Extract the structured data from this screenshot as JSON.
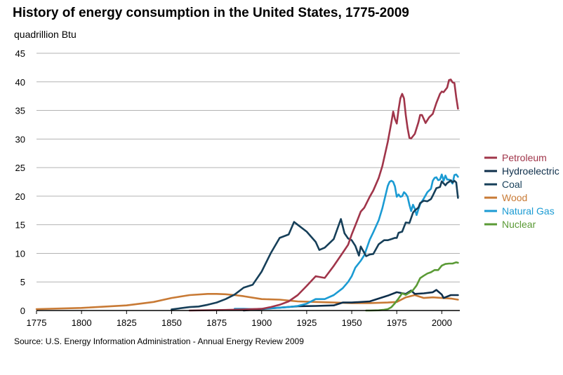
{
  "chart_data": {
    "type": "line",
    "title": "History of energy consumption in the United States, 1775-2009",
    "subtitle": "quadrillion Btu",
    "source": "Source: U.S. Energy Information Administration - Annual Energy Review 2009",
    "xlim": [
      1775,
      2010
    ],
    "ylim": [
      0,
      45
    ],
    "x_ticks": [
      1775,
      1800,
      1825,
      1850,
      1875,
      1900,
      1925,
      1950,
      1975,
      2000
    ],
    "y_ticks": [
      0,
      5,
      10,
      15,
      20,
      25,
      30,
      35,
      40,
      45
    ],
    "grid": true,
    "legend_position": "right",
    "series": [
      {
        "name": "Petroleum",
        "color": "#a0354a",
        "x": [
          1860,
          1880,
          1890,
          1900,
          1905,
          1910,
          1915,
          1920,
          1925,
          1930,
          1935,
          1940,
          1945,
          1948,
          1950,
          1952,
          1955,
          1957,
          1960,
          1962,
          1965,
          1967,
          1970,
          1972,
          1973,
          1974,
          1975,
          1976,
          1977,
          1978,
          1979,
          1980,
          1981,
          1982,
          1983,
          1985,
          1987,
          1988,
          1989,
          1990,
          1991,
          1993,
          1995,
          1997,
          1999,
          2000,
          2001,
          2003,
          2004,
          2005,
          2006,
          2007,
          2008,
          2009
        ],
        "y": [
          0,
          0.1,
          0.2,
          0.3,
          0.6,
          1.0,
          1.6,
          2.7,
          4.3,
          6.0,
          5.7,
          7.8,
          10.1,
          11.5,
          13.3,
          14.9,
          17.3,
          18.0,
          19.9,
          21.0,
          23.2,
          25.3,
          29.5,
          32.9,
          34.8,
          33.5,
          32.7,
          35.2,
          37.1,
          37.9,
          37.1,
          34.2,
          31.9,
          30.2,
          30.1,
          30.9,
          32.9,
          34.2,
          34.2,
          33.5,
          32.8,
          33.8,
          34.4,
          36.3,
          37.9,
          38.3,
          38.2,
          39.0,
          40.3,
          40.4,
          39.9,
          39.8,
          37.3,
          35.3
        ]
      },
      {
        "name": "Hydroelectric",
        "color": "#0d2e4a",
        "x": [
          1890,
          1900,
          1910,
          1920,
          1930,
          1940,
          1945,
          1950,
          1960,
          1970,
          1975,
          1980,
          1983,
          1985,
          1990,
          1995,
          1997,
          2000,
          2001,
          2005,
          2009
        ],
        "y": [
          0,
          0.25,
          0.5,
          0.75,
          0.8,
          0.9,
          1.4,
          1.4,
          1.6,
          2.6,
          3.2,
          2.9,
          3.5,
          2.9,
          3.0,
          3.2,
          3.6,
          2.8,
          2.2,
          2.7,
          2.7
        ]
      },
      {
        "name": "Coal",
        "color": "#163f59",
        "x": [
          1850,
          1855,
          1860,
          1865,
          1870,
          1875,
          1880,
          1885,
          1890,
          1895,
          1900,
          1905,
          1910,
          1915,
          1918,
          1920,
          1925,
          1930,
          1932,
          1935,
          1940,
          1944,
          1946,
          1948,
          1950,
          1952,
          1954,
          1955,
          1958,
          1960,
          1962,
          1965,
          1968,
          1970,
          1972,
          1974,
          1975,
          1976,
          1978,
          1980,
          1982,
          1984,
          1985,
          1987,
          1988,
          1990,
          1992,
          1994,
          1995,
          1997,
          1999,
          2000,
          2002,
          2003,
          2004,
          2005,
          2006,
          2007,
          2008,
          2009
        ],
        "y": [
          0.2,
          0.4,
          0.6,
          0.7,
          1.0,
          1.4,
          2.0,
          2.8,
          4.0,
          4.5,
          6.8,
          10.0,
          12.7,
          13.3,
          15.5,
          15.0,
          13.8,
          12.0,
          10.6,
          11.0,
          12.5,
          16.0,
          13.5,
          12.6,
          12.3,
          11.3,
          9.6,
          11.2,
          9.5,
          9.8,
          9.9,
          11.6,
          12.3,
          12.3,
          12.5,
          12.7,
          12.7,
          13.6,
          13.8,
          15.4,
          15.3,
          17.1,
          17.5,
          18.0,
          18.8,
          19.2,
          19.1,
          19.5,
          20.1,
          21.4,
          21.6,
          22.6,
          21.9,
          22.3,
          22.5,
          22.8,
          22.4,
          22.7,
          22.4,
          19.7
        ]
      },
      {
        "name": "Wood",
        "color": "#c87a35",
        "x": [
          1775,
          1800,
          1825,
          1835,
          1840,
          1850,
          1860,
          1870,
          1875,
          1880,
          1885,
          1890,
          1900,
          1910,
          1920,
          1930,
          1940,
          1950,
          1960,
          1970,
          1975,
          1980,
          1985,
          1990,
          1995,
          2000,
          2005,
          2009
        ],
        "y": [
          0.25,
          0.45,
          0.9,
          1.3,
          1.5,
          2.2,
          2.7,
          2.9,
          2.9,
          2.85,
          2.7,
          2.5,
          2.0,
          1.9,
          1.6,
          1.5,
          1.4,
          1.3,
          1.3,
          1.4,
          1.5,
          2.3,
          2.7,
          2.2,
          2.3,
          2.2,
          2.1,
          1.9
        ]
      },
      {
        "name": "Natural Gas",
        "color": "#1b9bd3",
        "x": [
          1885,
          1890,
          1895,
          1900,
          1905,
          1910,
          1915,
          1920,
          1925,
          1930,
          1935,
          1940,
          1945,
          1948,
          1950,
          1952,
          1955,
          1957,
          1960,
          1962,
          1965,
          1967,
          1970,
          1971,
          1972,
          1973,
          1974,
          1975,
          1976,
          1977,
          1978,
          1979,
          1980,
          1981,
          1982,
          1983,
          1984,
          1985,
          1986,
          1987,
          1988,
          1990,
          1992,
          1994,
          1995,
          1996,
          1997,
          1998,
          1999,
          2000,
          2001,
          2002,
          2003,
          2004,
          2005,
          2006,
          2007,
          2008,
          2009
        ],
        "y": [
          0.3,
          0.3,
          0.25,
          0.3,
          0.4,
          0.5,
          0.6,
          0.8,
          1.2,
          2.0,
          2.0,
          2.7,
          3.9,
          5.0,
          6.0,
          7.5,
          8.7,
          9.7,
          12.4,
          13.7,
          15.8,
          17.9,
          21.8,
          22.5,
          22.7,
          22.5,
          21.7,
          19.9,
          20.3,
          19.9,
          20.0,
          20.7,
          20.4,
          19.9,
          18.5,
          17.4,
          18.5,
          17.8,
          16.7,
          17.7,
          18.6,
          19.6,
          20.7,
          21.3,
          22.7,
          23.2,
          23.3,
          22.8,
          22.9,
          23.8,
          22.7,
          23.6,
          22.9,
          22.9,
          22.6,
          22.2,
          23.7,
          23.8,
          23.4
        ]
      },
      {
        "name": "Nuclear",
        "color": "#5a9a35",
        "x": [
          1958,
          1960,
          1965,
          1968,
          1970,
          1972,
          1974,
          1976,
          1978,
          1980,
          1982,
          1984,
          1986,
          1988,
          1990,
          1992,
          1994,
          1996,
          1998,
          2000,
          2002,
          2004,
          2006,
          2008,
          2009
        ],
        "y": [
          0,
          0,
          0.04,
          0.14,
          0.24,
          0.58,
          1.27,
          2.11,
          3.02,
          2.74,
          3.13,
          3.55,
          4.38,
          5.66,
          6.1,
          6.48,
          6.69,
          7.09,
          7.07,
          7.86,
          8.14,
          8.22,
          8.21,
          8.43,
          8.35
        ]
      }
    ]
  }
}
